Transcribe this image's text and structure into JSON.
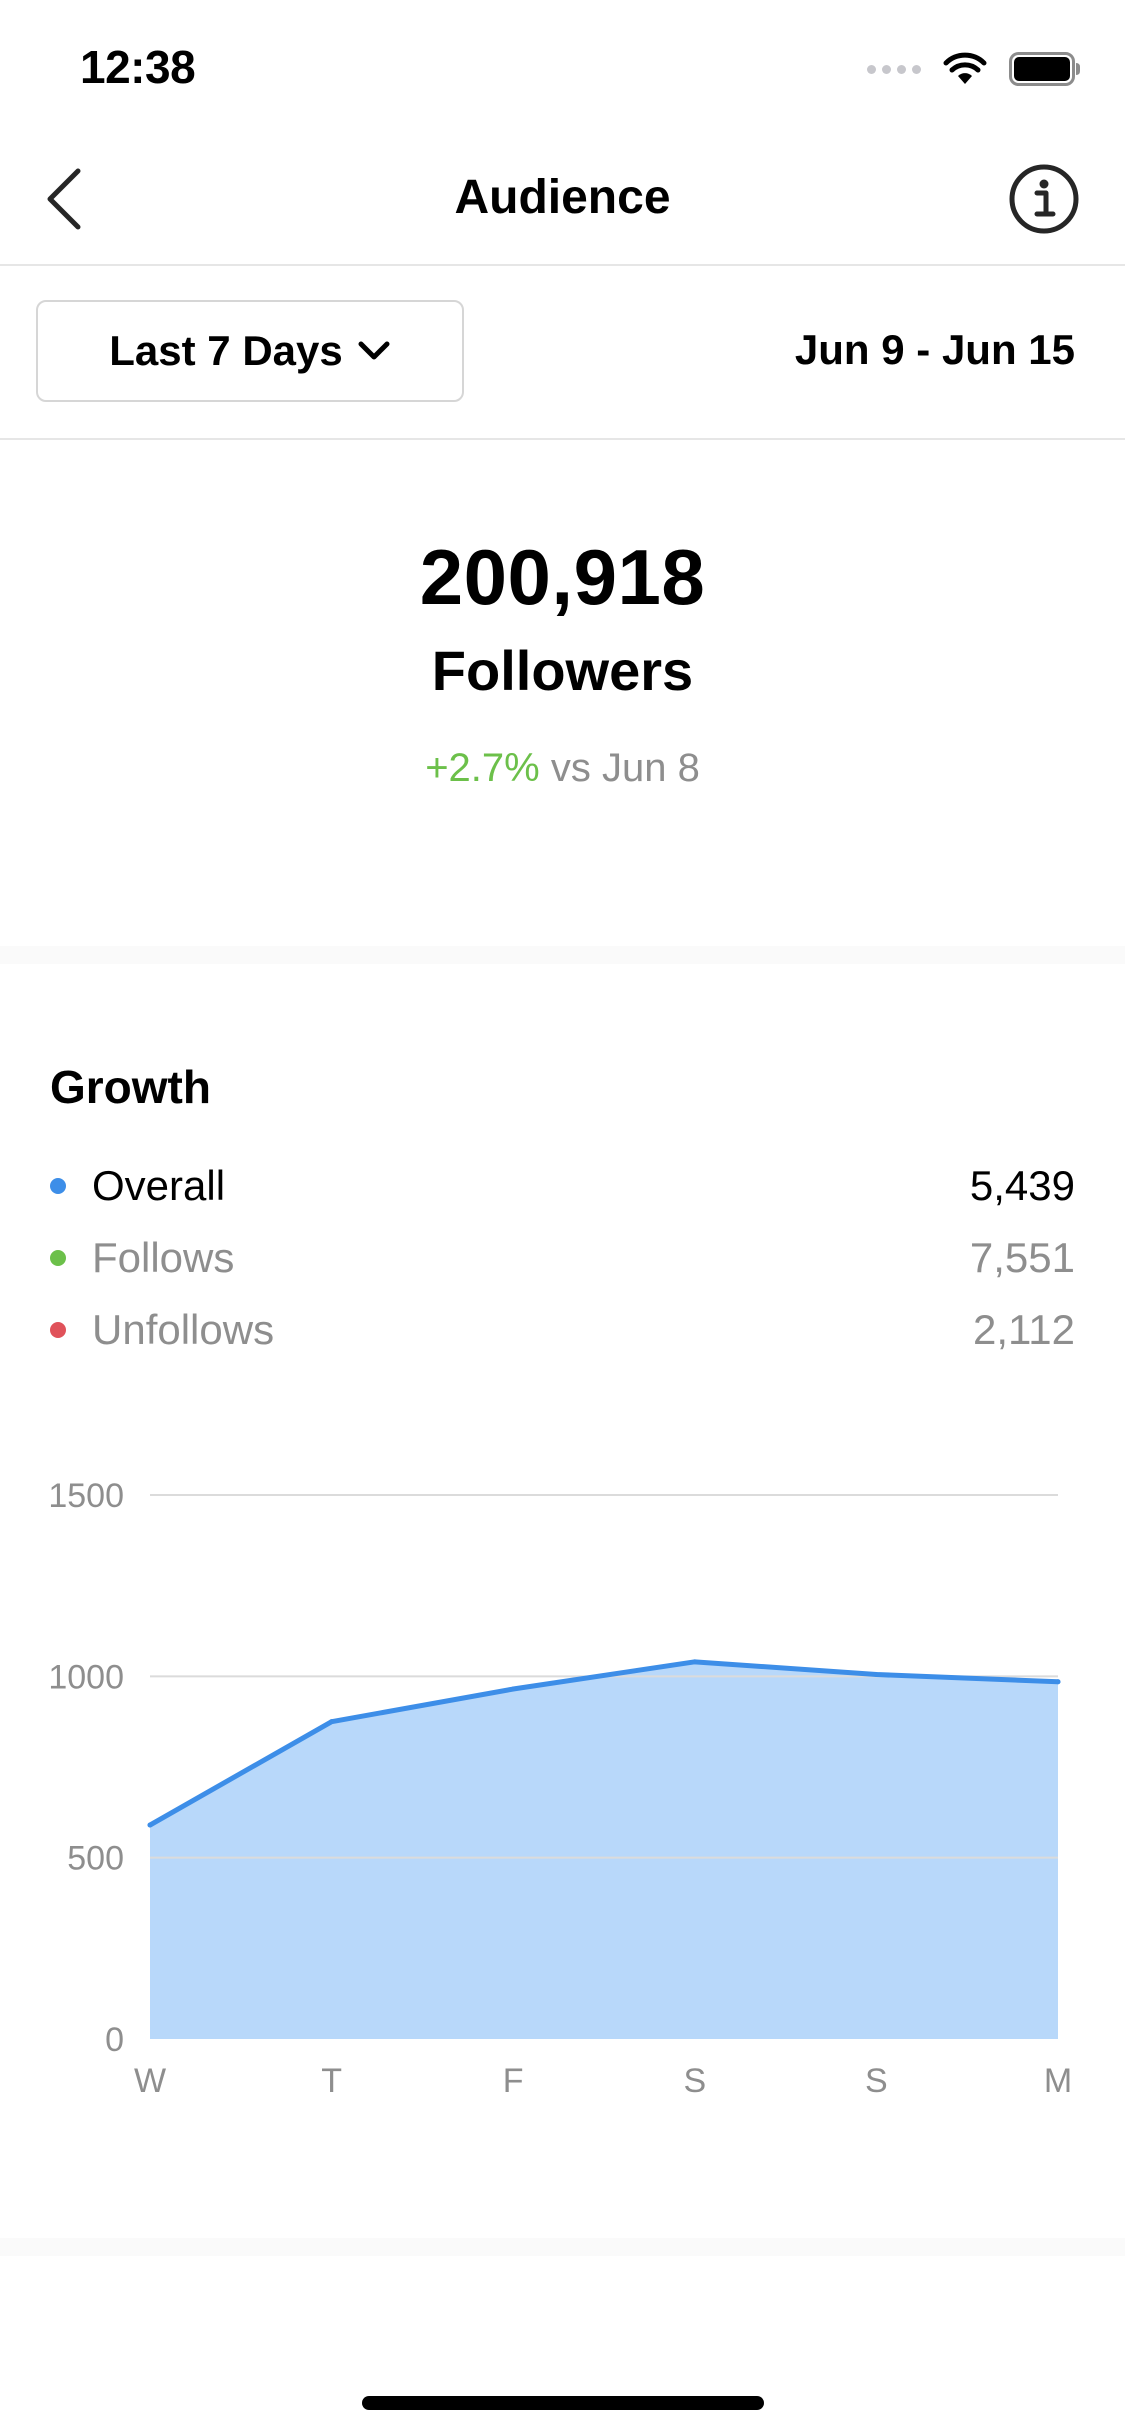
{
  "status_bar": {
    "time": "12:38"
  },
  "header": {
    "title": "Audience",
    "back_icon": "chevron-left-icon",
    "info_icon": "info-icon"
  },
  "filter": {
    "range_label": "Last 7 Days",
    "range_icon": "chevron-down-icon",
    "date_range": "Jun 9 - Jun 15"
  },
  "summary": {
    "followers_count": "200,918",
    "followers_label": "Followers",
    "change_value": "+2.7%",
    "change_text": "vs Jun 8"
  },
  "growth": {
    "title": "Growth",
    "legend": [
      {
        "label": "Overall",
        "value": "5,439",
        "color": "#3d8ee8"
      },
      {
        "label": "Follows",
        "value": "7,551",
        "color": "#6cc04a"
      },
      {
        "label": "Unfollows",
        "value": "2,112",
        "color": "#e0525a"
      }
    ]
  },
  "chart_data": {
    "type": "area",
    "categories": [
      "W",
      "T",
      "F",
      "S",
      "S",
      "M"
    ],
    "series": [
      {
        "name": "Overall",
        "values": [
          590,
          875,
          965,
          1040,
          1005,
          985
        ]
      }
    ],
    "yticks": [
      0,
      500,
      1000,
      1500
    ],
    "ylim": [
      0,
      1500
    ],
    "grid": true,
    "line_color": "#3d8ee8",
    "fill_color": "#b8d8fa"
  }
}
